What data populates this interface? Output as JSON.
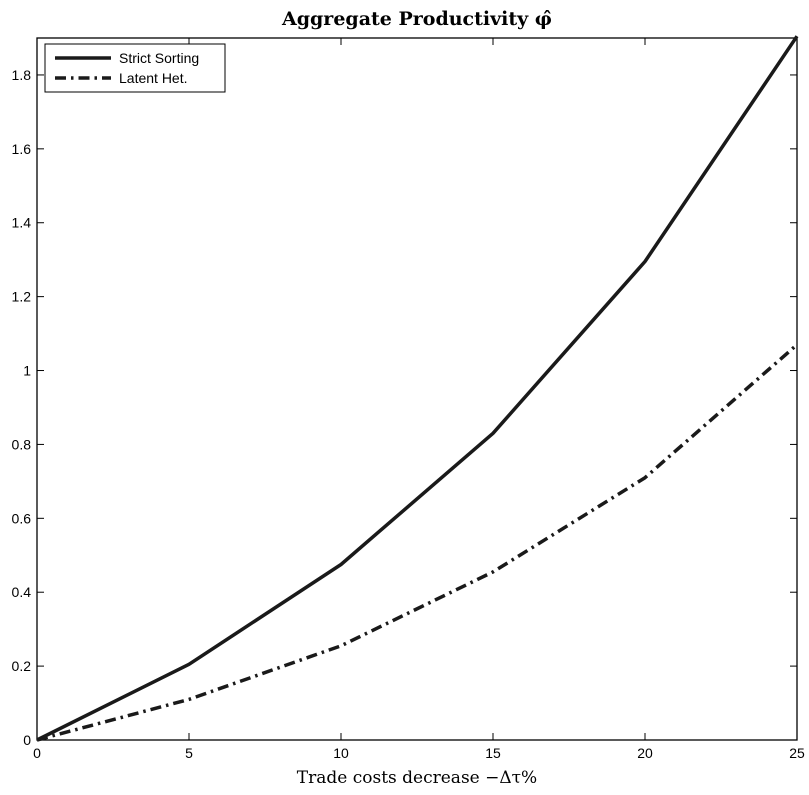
{
  "chart_data": {
    "type": "line",
    "title": "Aggregate Productivity φ̂",
    "xlabel": "Trade costs decrease −Δτ%",
    "ylabel": "",
    "xlim": [
      0,
      25
    ],
    "ylim": [
      0,
      1.9
    ],
    "xticks": [
      0,
      5,
      10,
      15,
      20,
      25
    ],
    "xtick_labels": [
      "0",
      "5",
      "10",
      "15",
      "20",
      "25"
    ],
    "yticks": [
      0,
      0.2,
      0.4,
      0.6,
      0.8,
      1,
      1.2,
      1.4,
      1.6,
      1.8
    ],
    "ytick_labels": [
      "0",
      "0.2",
      "0.4",
      "0.6",
      "0.8",
      "1",
      "1.2",
      "1.4",
      "1.6",
      "1.8"
    ],
    "grid": false,
    "legend_position": "top-left",
    "x": [
      0,
      5,
      10,
      15,
      20,
      25
    ],
    "series": [
      {
        "name": "Strict Sorting",
        "style": "solid",
        "color": "#1a1a1a",
        "values": [
          0,
          0.205,
          0.475,
          0.83,
          1.295,
          1.905
        ]
      },
      {
        "name": "Latent Het.",
        "style": "dash-dot",
        "color": "#1a1a1a",
        "values": [
          0,
          0.11,
          0.255,
          0.455,
          0.71,
          1.07
        ]
      }
    ]
  }
}
